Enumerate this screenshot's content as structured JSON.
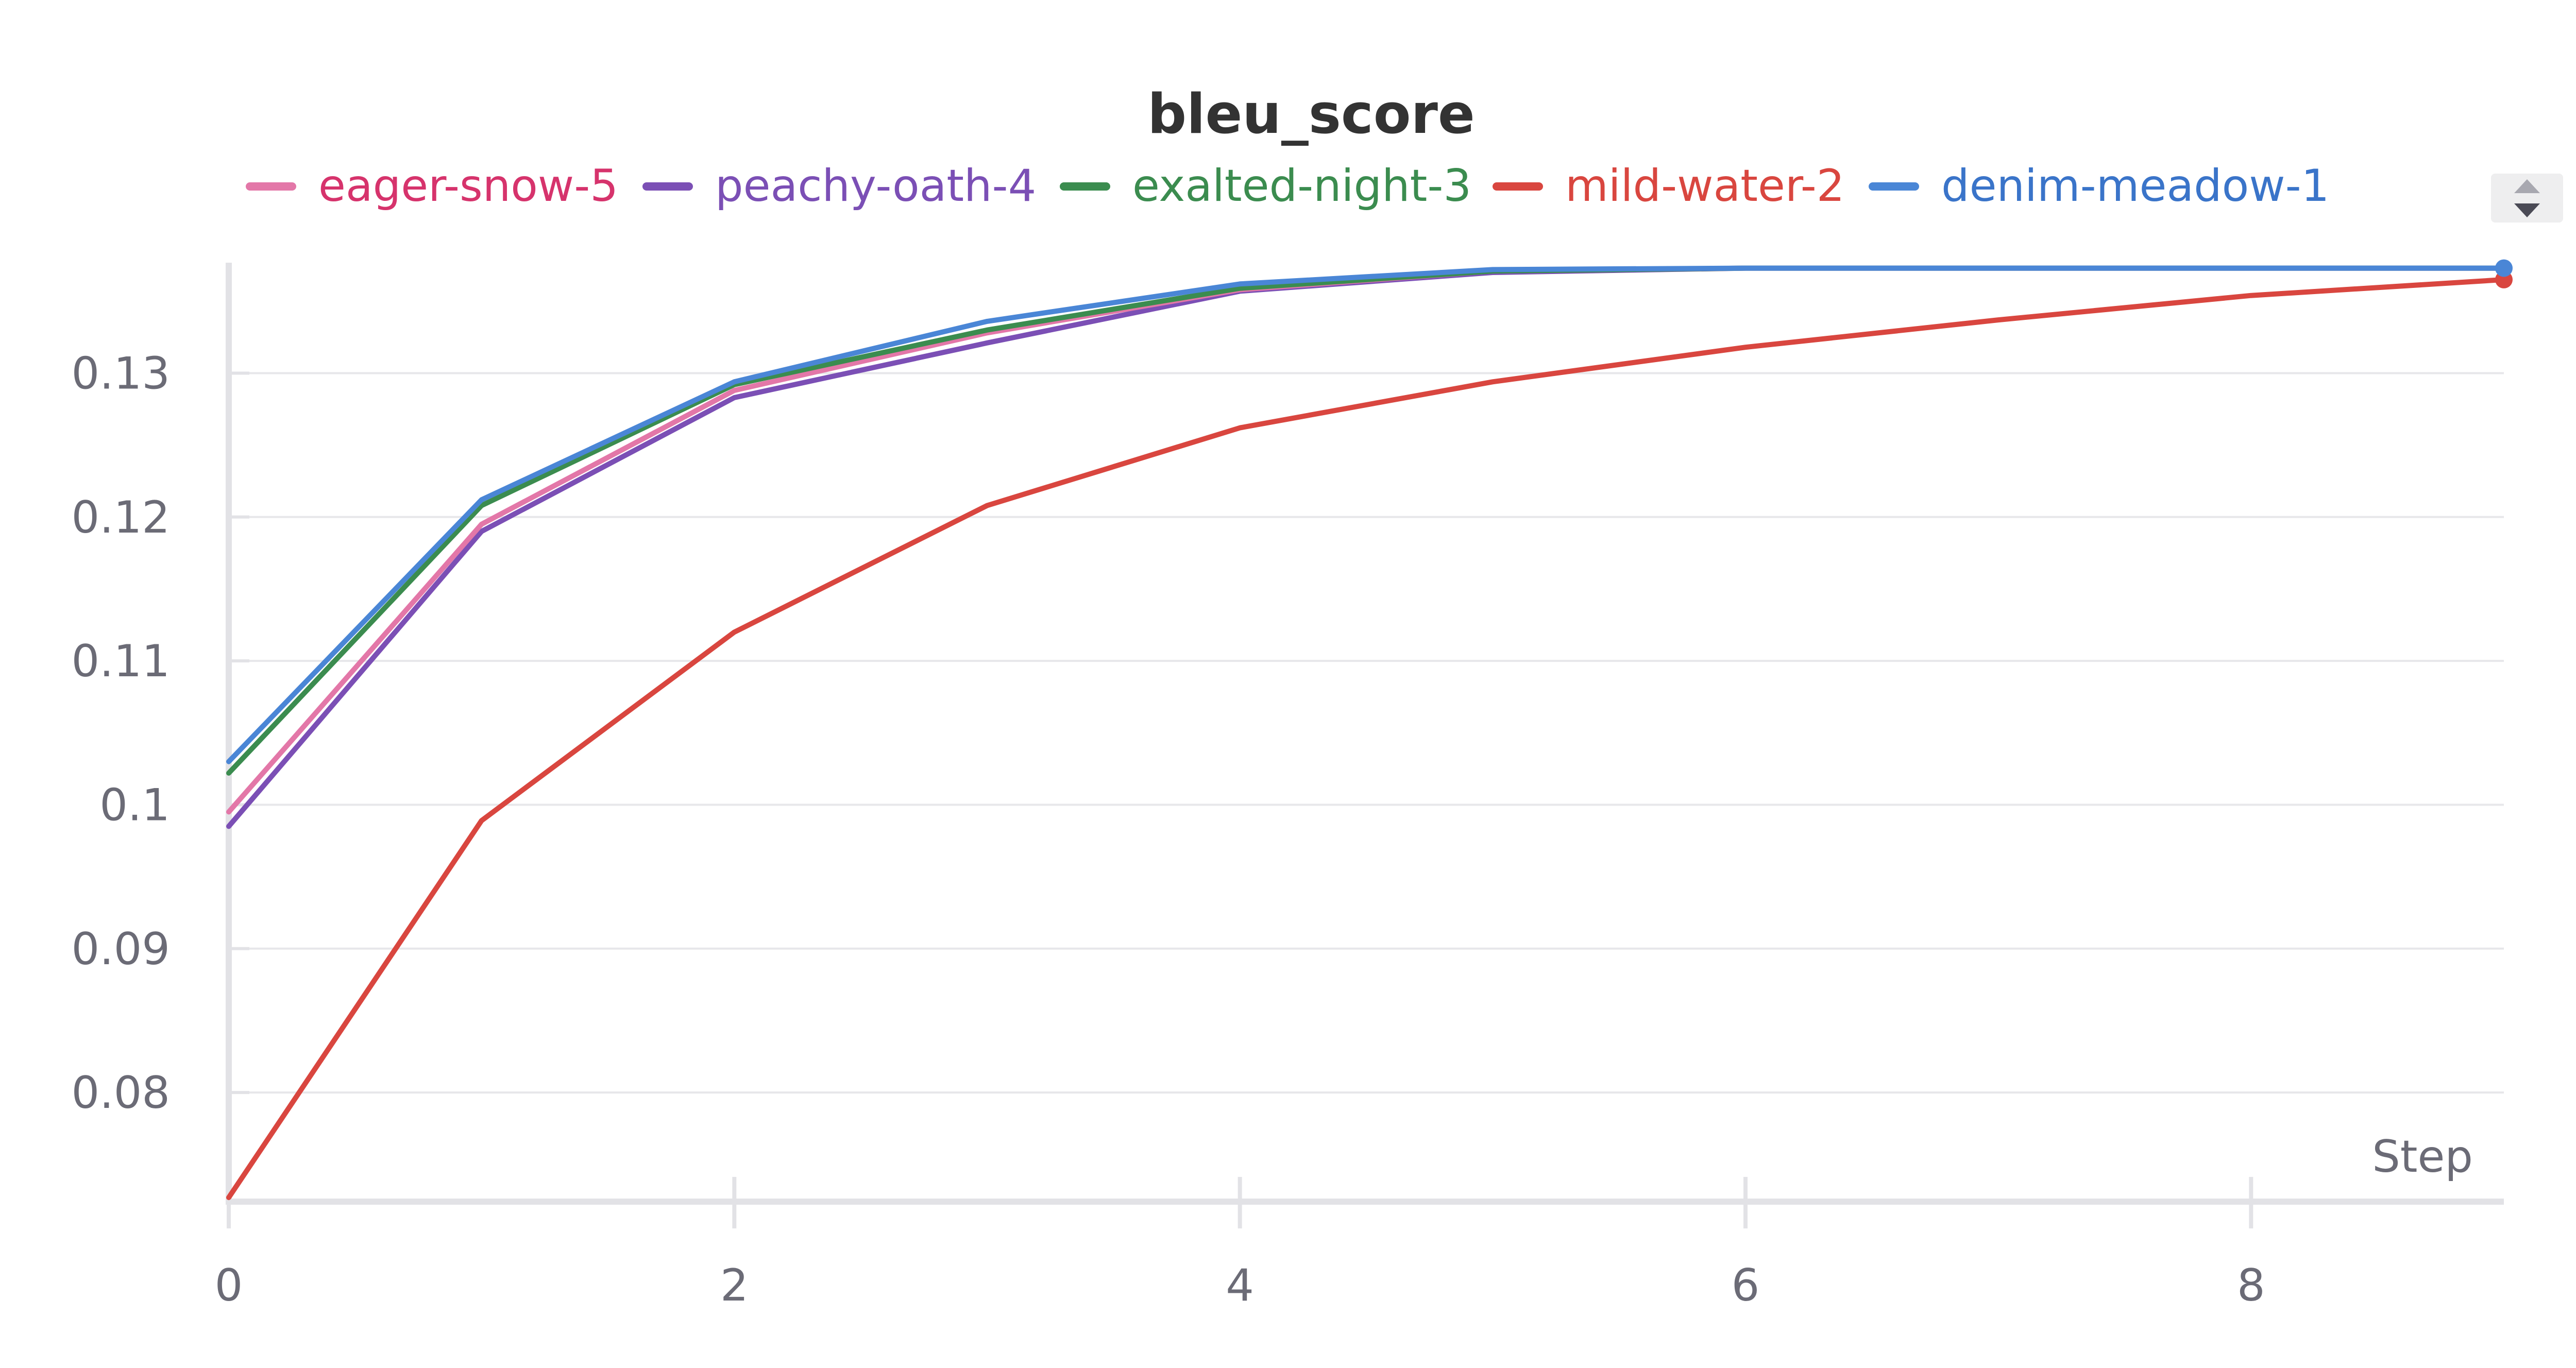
{
  "chart_data": {
    "type": "line",
    "title": "bleu_score",
    "xlabel": "Step",
    "ylabel": "",
    "xlim": [
      0,
      9
    ],
    "ylim": [
      0.0727,
      0.1375
    ],
    "x_ticks": [
      0,
      2,
      4,
      6,
      8
    ],
    "y_ticks": [
      0.08,
      0.09,
      0.1,
      0.11,
      0.12,
      0.13
    ],
    "y_tick_labels": [
      "0.08",
      "0.09",
      "0.1",
      "0.11",
      "0.12",
      "0.13"
    ],
    "grid": true,
    "legend_placement": "top",
    "x": [
      0,
      1,
      2,
      3,
      4,
      5,
      6,
      7,
      8,
      9
    ],
    "series": [
      {
        "name": "eager-snow-5",
        "line_color": "#e377a8",
        "label_color": "#d6336c",
        "values": [
          0.0995,
          0.1195,
          0.1288,
          0.1328,
          0.1358,
          0.1371,
          0.1373,
          0.1373,
          0.1373,
          0.1373
        ]
      },
      {
        "name": "peachy-oath-4",
        "line_color": "#7b4fb5",
        "label_color": "#7b4fb5",
        "values": [
          0.0985,
          0.119,
          0.1283,
          0.1321,
          0.1357,
          0.137,
          0.1373,
          0.1373,
          0.1373,
          0.1373
        ]
      },
      {
        "name": "exalted-night-3",
        "line_color": "#3b8c4f",
        "label_color": "#3b8c4f",
        "values": [
          0.1022,
          0.1208,
          0.1292,
          0.133,
          0.1359,
          0.1371,
          0.1373,
          0.1373,
          0.1373,
          0.1373
        ]
      },
      {
        "name": "mild-water-2",
        "line_color": "#d9463f",
        "label_color": "#d9463f",
        "values": [
          0.0727,
          0.0989,
          0.112,
          0.1208,
          0.1262,
          0.1294,
          0.1318,
          0.1337,
          0.1354,
          0.1365
        ]
      },
      {
        "name": "denim-meadow-1",
        "line_color": "#4a86d6",
        "label_color": "#3a74c9",
        "values": [
          0.103,
          0.1212,
          0.1294,
          0.1336,
          0.1362,
          0.1372,
          0.1373,
          0.1373,
          0.1373,
          0.1373
        ]
      }
    ]
  }
}
